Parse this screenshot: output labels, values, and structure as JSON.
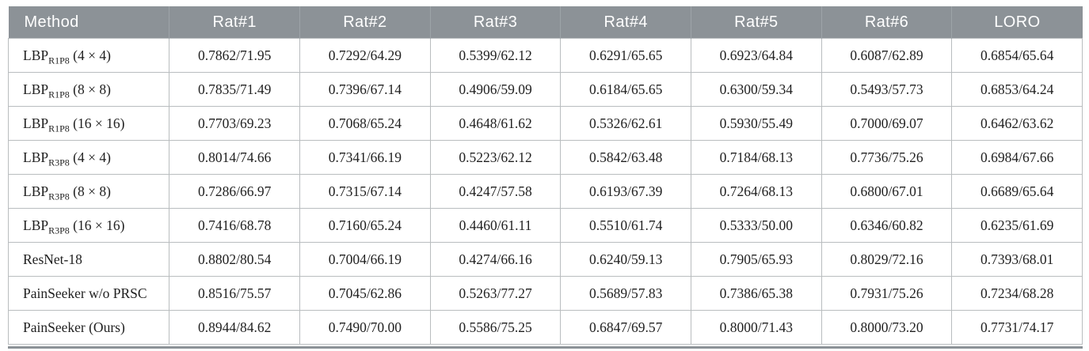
{
  "chart_data": {
    "type": "table",
    "title": "",
    "columns": [
      "Method",
      "Rat#1",
      "Rat#2",
      "Rat#3",
      "Rat#4",
      "Rat#5",
      "Rat#6",
      "LORO"
    ],
    "rows": [
      {
        "method": "LBP_R1P8 (4 × 4)",
        "values": [
          "0.7862/71.95",
          "0.7292/64.29",
          "0.5399/62.12",
          "0.6291/65.65",
          "0.6923/64.84",
          "0.6087/62.89",
          "0.6854/65.64"
        ]
      },
      {
        "method": "LBP_R1P8 (8 × 8)",
        "values": [
          "0.7835/71.49",
          "0.7396/67.14",
          "0.4906/59.09",
          "0.6184/65.65",
          "0.6300/59.34",
          "0.5493/57.73",
          "0.6853/64.24"
        ]
      },
      {
        "method": "LBP_R1P8 (16 × 16)",
        "values": [
          "0.7703/69.23",
          "0.7068/65.24",
          "0.4648/61.62",
          "0.5326/62.61",
          "0.5930/55.49",
          "0.7000/69.07",
          "0.6462/63.62"
        ]
      },
      {
        "method": "LBP_R3P8 (4 × 4)",
        "values": [
          "0.8014/74.66",
          "0.7341/66.19",
          "0.5223/62.12",
          "0.5842/63.48",
          "0.7184/68.13",
          "0.7736/75.26",
          "0.6984/67.66"
        ]
      },
      {
        "method": "LBP_R3P8 (8 × 8)",
        "values": [
          "0.7286/66.97",
          "0.7315/67.14",
          "0.4247/57.58",
          "0.6193/67.39",
          "0.7264/68.13",
          "0.6800/67.01",
          "0.6689/65.64"
        ]
      },
      {
        "method": "LBP_R3P8 (16 × 16)",
        "values": [
          "0.7416/68.78",
          "0.7160/65.24",
          "0.4460/61.11",
          "0.5510/61.74",
          "0.5333/50.00",
          "0.6346/60.82",
          "0.6235/61.69"
        ]
      },
      {
        "method": "ResNet-18",
        "values": [
          "0.8802/80.54",
          "0.7004/66.19",
          "0.4274/66.16",
          "0.6240/59.13",
          "0.7905/65.93",
          "0.8029/72.16",
          "0.7393/68.01"
        ]
      },
      {
        "method": "PainSeeker w/o PRSC",
        "values": [
          "0.8516/75.57",
          "0.7045/62.86",
          "0.5263/77.27",
          "0.5689/57.83",
          "0.7386/65.38",
          "0.7931/75.26",
          "0.7234/68.28"
        ]
      },
      {
        "method": "PainSeeker (Ours)",
        "values": [
          "0.8944/84.62",
          "0.7490/70.00",
          "0.5586/75.25",
          "0.6847/69.57",
          "0.8000/71.43",
          "0.8000/73.20",
          "0.7731/74.17"
        ]
      }
    ]
  },
  "table": {
    "methods": [
      {
        "base": "LBP",
        "sub": "R1P8",
        "rest": " (4 × 4)"
      },
      {
        "base": "LBP",
        "sub": "R1P8",
        "rest": " (8 × 8)"
      },
      {
        "base": "LBP",
        "sub": "R1P8",
        "rest": " (16 × 16)"
      },
      {
        "base": "LBP",
        "sub": "R3P8",
        "rest": " (4 × 4)"
      },
      {
        "base": "LBP",
        "sub": "R3P8",
        "rest": " (8 × 8)"
      },
      {
        "base": "LBP",
        "sub": "R3P8",
        "rest": " (16 × 16)"
      },
      {
        "base": "ResNet-18",
        "sub": "",
        "rest": ""
      },
      {
        "base": "PainSeeker w/o PRSC",
        "sub": "",
        "rest": ""
      },
      {
        "base": "PainSeeker (Ours)",
        "sub": "",
        "rest": ""
      }
    ],
    "colors": {
      "header_bg": "#8c9297",
      "header_text": "#ffffff",
      "cell_border": "#b9bdbf",
      "bottom_rule": "#8c9297",
      "body_text": "#1f1f1f"
    }
  }
}
